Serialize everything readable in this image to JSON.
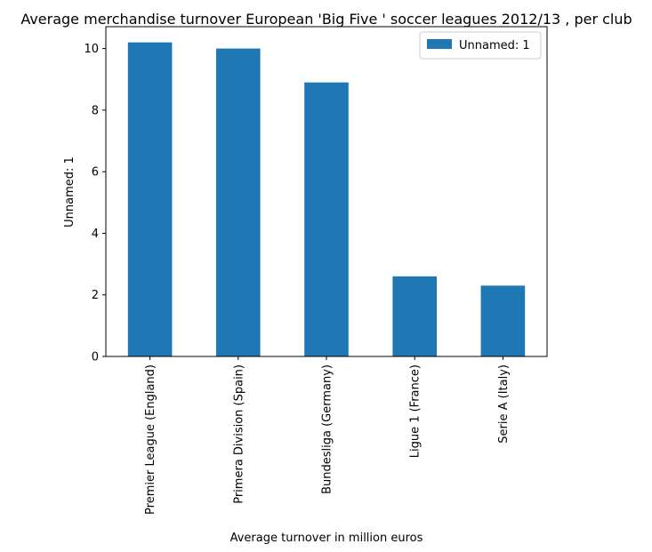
{
  "chart_data": {
    "type": "bar",
    "title": "Average merchandise turnover European 'Big Five ' soccer leagues 2012/13 , per club",
    "xlabel": "Average turnover in million euros",
    "ylabel": "Unnamed: 1",
    "categories": [
      "Premier League (England)",
      "Primera Division (Spain)",
      "Bundesliga (Germany)",
      "Ligue 1 (France)",
      "Serie A (Italy)"
    ],
    "series": [
      {
        "name": "Unnamed: 1",
        "values": [
          10.2,
          10.0,
          8.9,
          2.6,
          2.3
        ],
        "color": "#1f77b4"
      }
    ],
    "yticks": [
      0,
      2,
      4,
      6,
      8,
      10
    ],
    "ylim": [
      0,
      10.71
    ],
    "grid": false,
    "legend_position": "top-right"
  }
}
